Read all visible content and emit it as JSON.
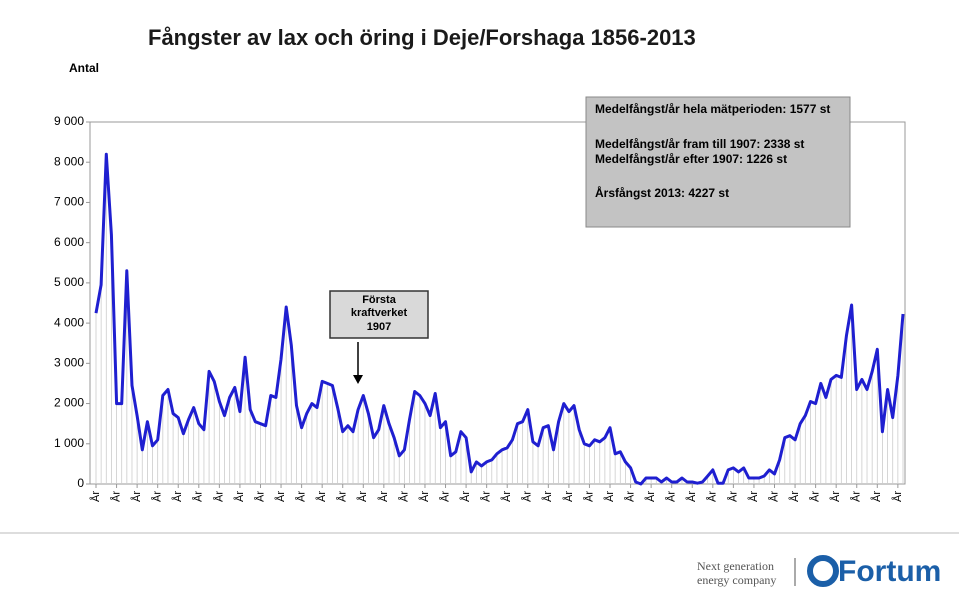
{
  "chart_data": {
    "type": "line",
    "title": "Fångster av lax och öring i Deje/Forshaga 1856-2013",
    "y_label": "Antal",
    "categories": [
      "År",
      null,
      null,
      null,
      "År",
      null,
      null,
      null,
      "År",
      null,
      null,
      null,
      "År",
      null,
      null,
      null,
      "År",
      null,
      null,
      null,
      "År",
      null,
      null,
      null,
      "År",
      null,
      null,
      null,
      "År",
      null,
      null,
      null,
      "År",
      null,
      null,
      null,
      "År",
      null,
      null,
      null,
      "År",
      null,
      null,
      null,
      "År",
      null,
      null,
      null,
      "År",
      null,
      null,
      null,
      "År",
      null,
      null,
      null,
      "År",
      null,
      null,
      null,
      "År",
      null,
      null,
      null,
      "År",
      null,
      null,
      null,
      "År",
      null,
      null,
      null,
      "År",
      null,
      null,
      null,
      "År",
      null,
      null,
      null,
      "År",
      null,
      null,
      null,
      "År",
      null,
      null,
      null,
      "År",
      null,
      null,
      null,
      "År",
      null,
      null,
      null,
      "År",
      null,
      null,
      null,
      "År",
      null,
      null,
      null,
      "År",
      null,
      null,
      null,
      "År",
      null,
      null,
      null,
      "År",
      null,
      null,
      null,
      "År",
      null,
      null,
      null,
      "År",
      null,
      null,
      null,
      "År",
      null,
      null,
      null,
      "År",
      null,
      null,
      null,
      "År",
      null,
      null,
      null,
      "År",
      null,
      null,
      null,
      "År",
      null,
      null,
      null,
      "År",
      null,
      null,
      null,
      "År",
      null,
      null,
      null,
      "År",
      null,
      null,
      null,
      "År",
      null
    ],
    "series": [
      {
        "name": "Antal",
        "color": "#1f1fd0",
        "values": [
          4250,
          4950,
          8200,
          6200,
          2000,
          2000,
          5300,
          2450,
          1700,
          850,
          1550,
          950,
          1100,
          2200,
          2350,
          1750,
          1650,
          1250,
          1600,
          1900,
          1500,
          1350,
          2800,
          2550,
          2050,
          1700,
          2150,
          2400,
          1800,
          3150,
          1850,
          1550,
          1500,
          1450,
          2200,
          2150,
          3100,
          4400,
          3450,
          1950,
          1400,
          1750,
          2000,
          1900,
          2550,
          2500,
          2450,
          1900,
          1300,
          1450,
          1300,
          1850,
          2200,
          1750,
          1150,
          1350,
          1950,
          1500,
          1150,
          700,
          850,
          1600,
          2300,
          2200,
          2000,
          1700,
          2250,
          1400,
          1550,
          700,
          800,
          1300,
          1150,
          300,
          550,
          450,
          550,
          600,
          750,
          850,
          900,
          1100,
          1500,
          1550,
          1850,
          1050,
          950,
          1400,
          1450,
          850,
          1550,
          2000,
          1800,
          1950,
          1350,
          1000,
          950,
          1100,
          1050,
          1150,
          1400,
          750,
          800,
          550,
          400,
          50,
          0,
          150,
          150,
          150,
          50,
          150,
          50,
          50,
          150,
          50,
          50,
          20,
          50,
          200,
          350,
          20,
          20,
          350,
          400,
          300,
          400,
          150,
          150,
          150,
          200,
          350,
          250,
          600,
          1150,
          1200,
          1100,
          1500,
          1700,
          2050,
          2000,
          2500,
          2150,
          2600,
          2700,
          2650,
          3700,
          4450,
          2350,
          2600,
          2350,
          2800,
          3350,
          1300,
          2350,
          1650,
          2700,
          4227
        ]
      }
    ],
    "ylim": [
      0,
      9000
    ],
    "yticks": [
      0,
      {
        "value": 1000,
        "label": "1 000"
      },
      {
        "value": 2000,
        "label": "2 000"
      },
      {
        "value": 3000,
        "label": "3 000"
      },
      {
        "value": 4000,
        "label": "4 000"
      },
      {
        "value": 5000,
        "label": "5 000"
      },
      {
        "value": 6000,
        "label": "6 000"
      },
      {
        "value": 7000,
        "label": "7 000"
      },
      {
        "value": 8000,
        "label": "8 000"
      },
      {
        "value": 9000,
        "label": "9 000"
      }
    ],
    "info_box": [
      "Medelfångst/år hela mätperioden: 1577 st",
      "Medelfångst/år fram till 1907: 2338 st",
      "Medelfångst/år efter 1907: 1226 st",
      "Årsfångst 2013: 4227 st"
    ],
    "annotation": [
      "Första",
      "kraftverket",
      "1907"
    ]
  },
  "footer": {
    "tagline": [
      "Next generation",
      "energy company"
    ],
    "logo": "Fortum"
  }
}
